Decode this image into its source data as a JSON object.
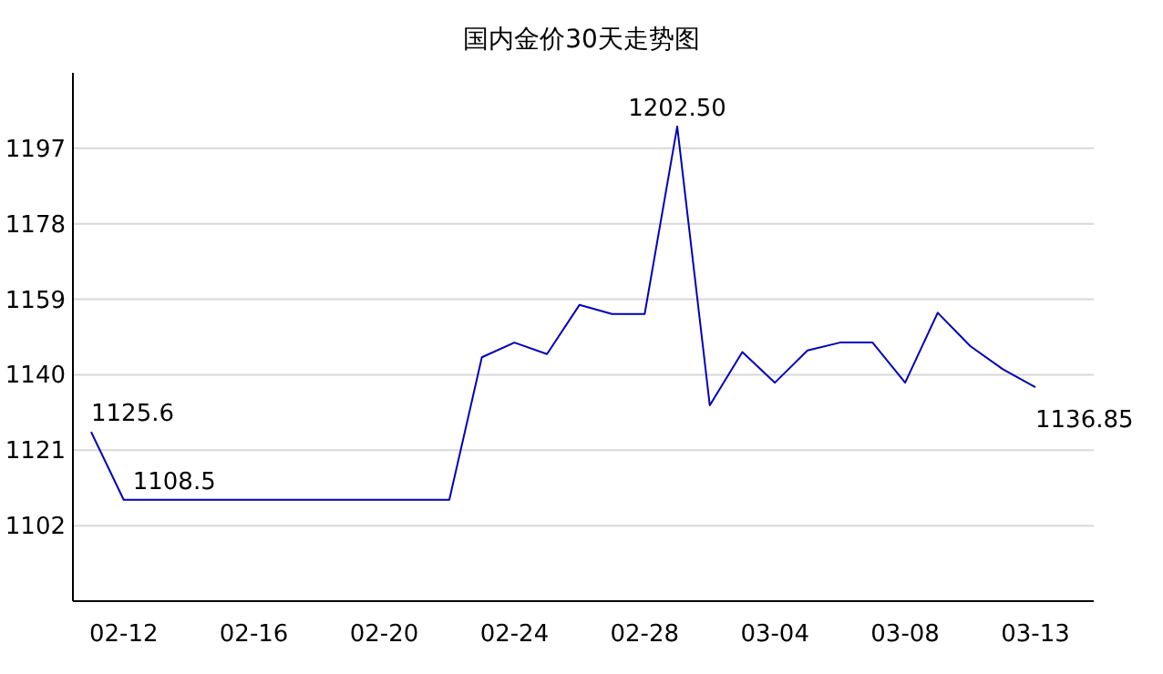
{
  "chart_data": {
    "type": "line",
    "title": "国内金价30天走势图",
    "categories": [
      null,
      "02-12",
      null,
      null,
      null,
      "02-16",
      null,
      null,
      null,
      "02-20",
      null,
      null,
      null,
      "02-24",
      null,
      null,
      null,
      "02-28",
      null,
      null,
      null,
      "03-04",
      null,
      null,
      null,
      "03-08",
      null,
      null,
      null,
      "03-13"
    ],
    "series": [
      {
        "color": "#0000bb",
        "values": [
          1125.6,
          1108.5,
          1108.5,
          1108.5,
          1108.5,
          1108.5,
          1108.5,
          1108.5,
          1108.5,
          1108.5,
          1108.5,
          1108.5,
          1144.4,
          1148.1,
          1145.2,
          1157.6,
          1155.3,
          1155.3,
          1202.5,
          1132.3,
          1145.7,
          1138,
          1146.1,
          1148.1,
          1148.1,
          1138,
          1155.6,
          1147.2,
          1141.4,
          1136.85
        ],
        "value_labels": [
          "1125.6",
          "1108.5",
          null,
          null,
          null,
          null,
          null,
          null,
          null,
          null,
          null,
          null,
          null,
          null,
          null,
          null,
          null,
          null,
          "1202.50",
          null,
          null,
          null,
          null,
          null,
          null,
          null,
          null,
          null,
          null,
          "1136.85"
        ]
      }
    ],
    "ylim": [
      1083,
      1216
    ],
    "yticks": [
      1102,
      1121,
      1140,
      1159,
      1178,
      1197
    ],
    "grid": "y",
    "marker": "none",
    "line_style": "solid"
  }
}
